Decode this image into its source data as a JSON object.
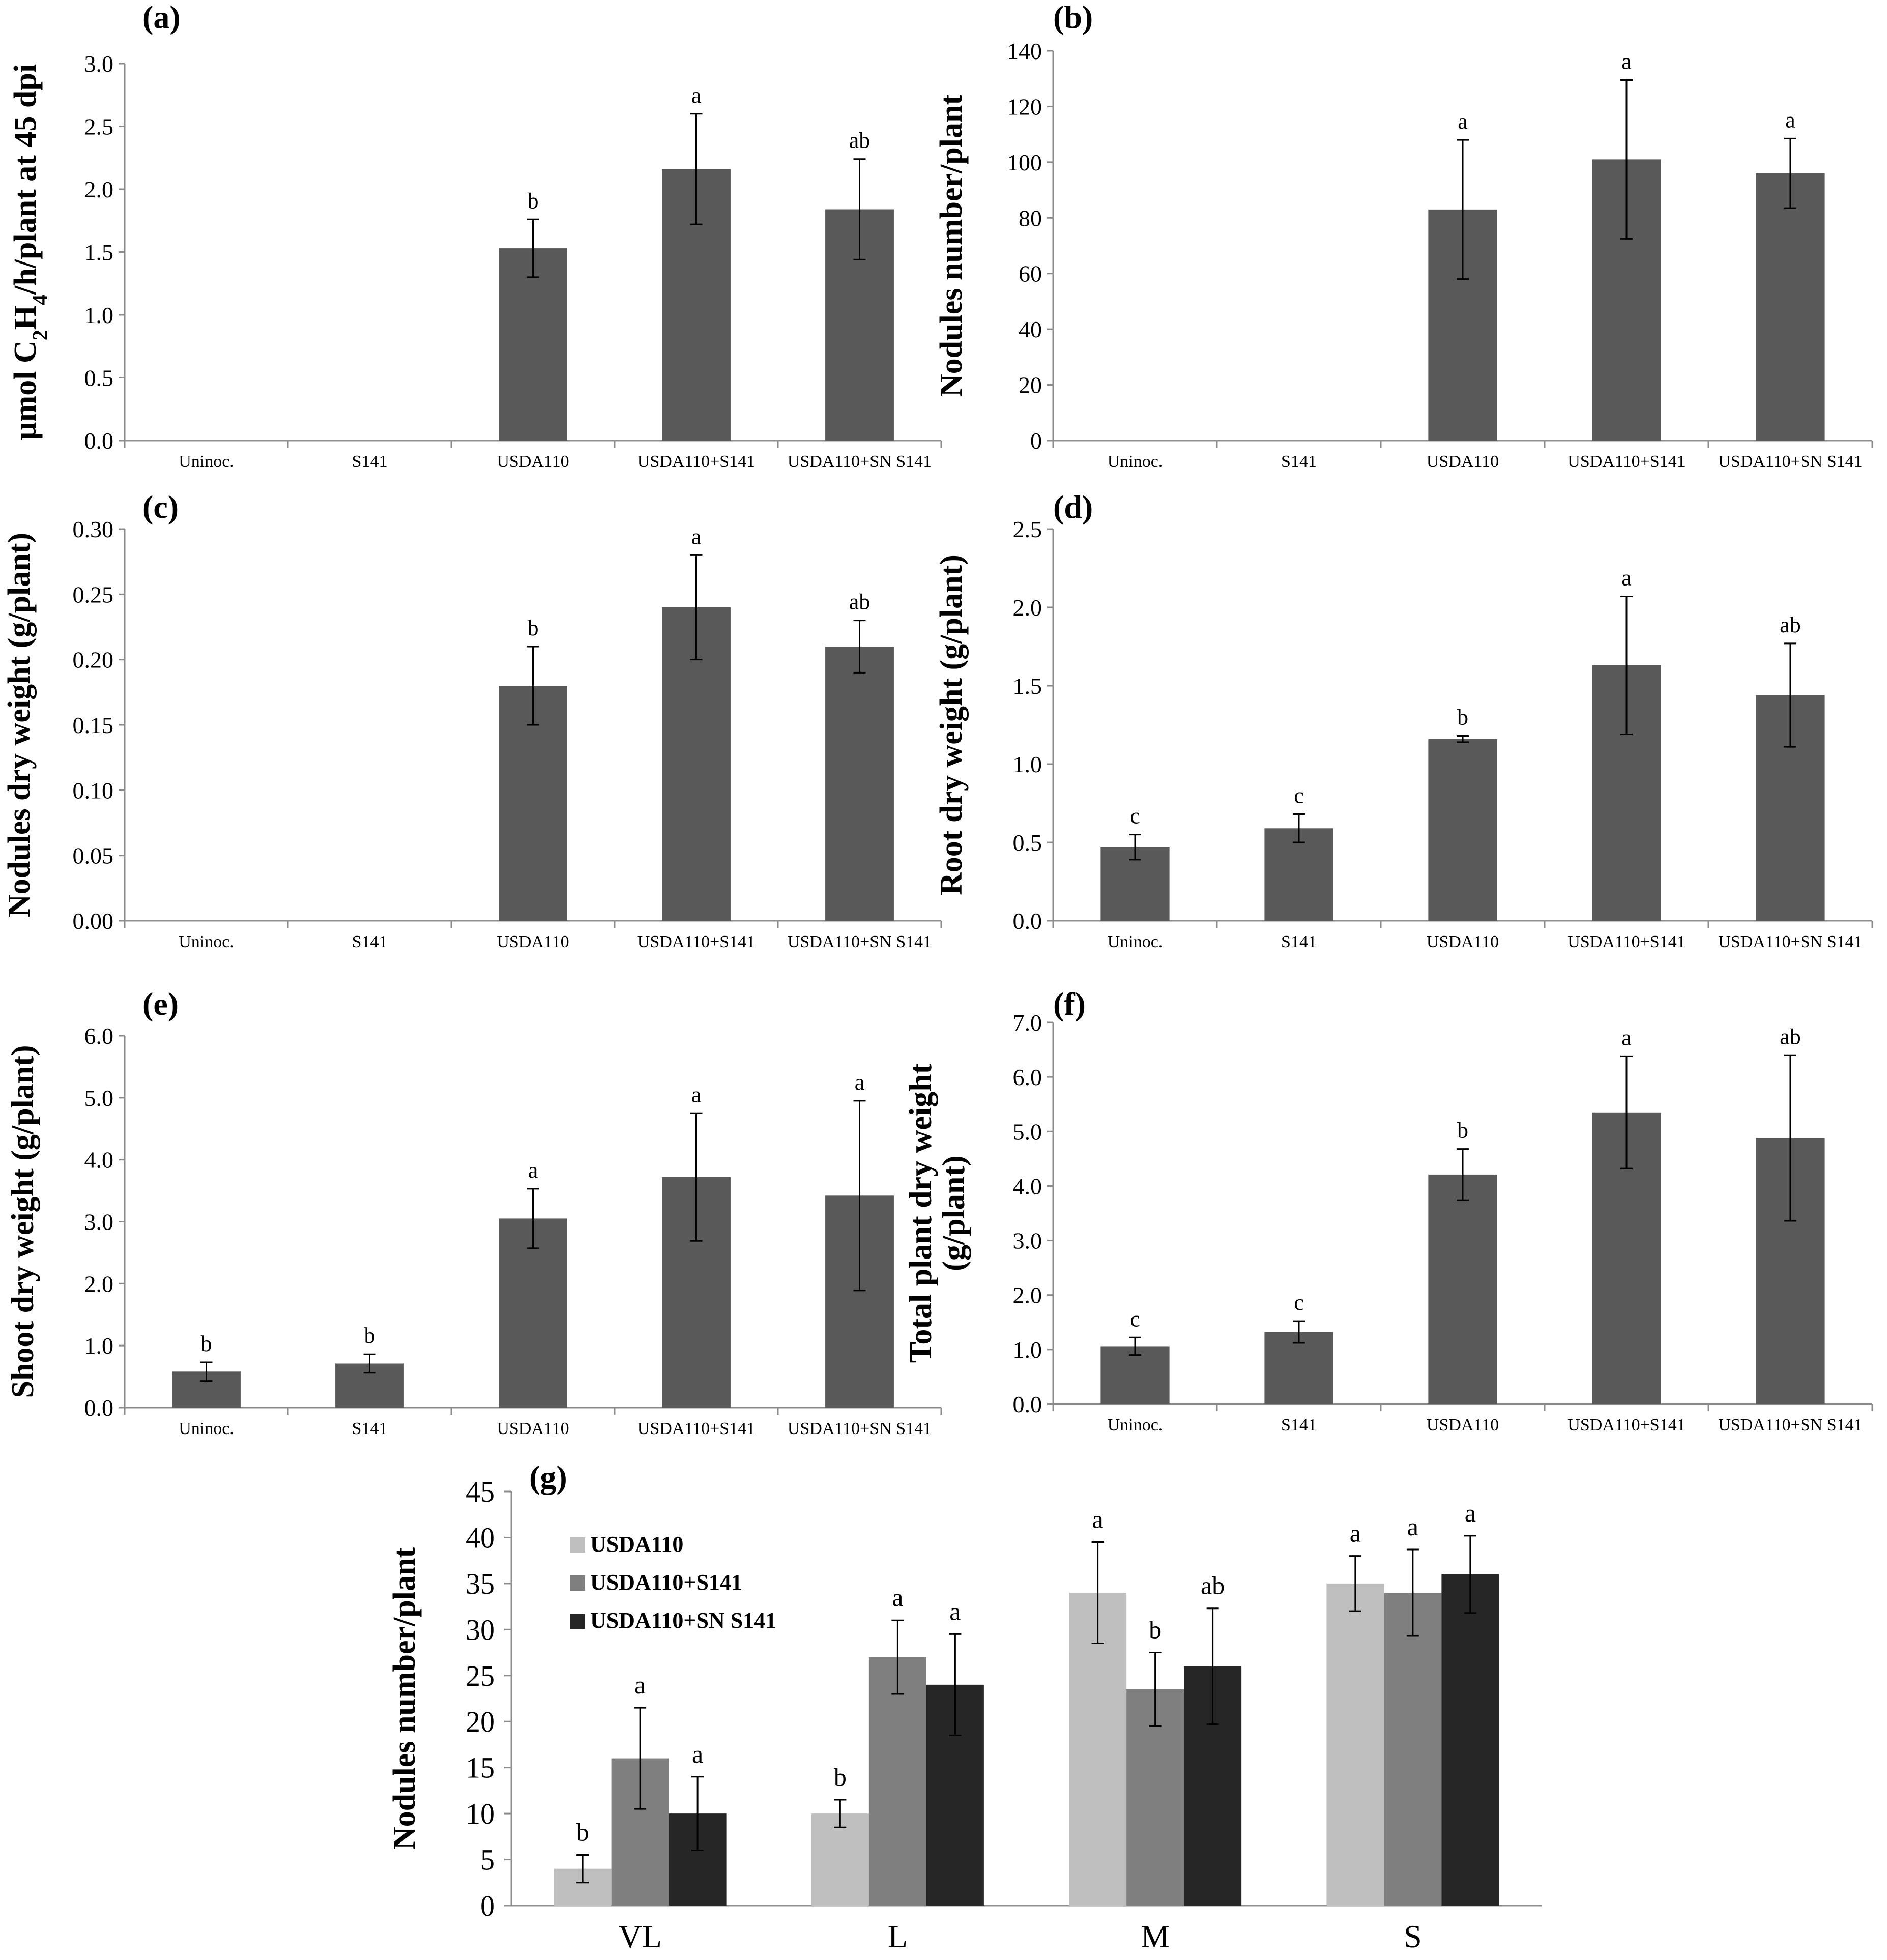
{
  "colors": {
    "bar": "#595959",
    "g_series": [
      "#bfbfbf",
      "#7f7f7f",
      "#262626"
    ],
    "axis": "#8c8c8c"
  },
  "chart_data": [
    {
      "type": "bar",
      "panel": "(a)",
      "ylabel_lines": [
        [
          {
            "t": "µmol C"
          },
          {
            "t": "2",
            "sub": true
          },
          {
            "t": "H"
          },
          {
            "t": "4",
            "sub": true
          },
          {
            "t": "/h/plant at 45 dpi"
          }
        ]
      ],
      "categories": [
        "Uninoc.",
        "S141",
        "USDA110",
        "USDA110+S141",
        "USDA110+SN S141"
      ],
      "values": [
        null,
        null,
        1.53,
        2.16,
        1.84
      ],
      "errors": [
        null,
        null,
        0.23,
        0.44,
        0.4
      ],
      "letters": [
        "",
        "",
        "b",
        "a",
        "ab"
      ],
      "ylim": [
        0,
        3.0
      ],
      "yticks": [
        "0.0",
        "0.5",
        "1.0",
        "1.5",
        "2.0",
        "2.5",
        "3.0"
      ]
    },
    {
      "type": "bar",
      "panel": "(b)",
      "ylabel_lines": [
        [
          {
            "t": "Nodules number/plant"
          }
        ]
      ],
      "categories": [
        "Uninoc.",
        "S141",
        "USDA110",
        "USDA110+S141",
        "USDA110+SN S141"
      ],
      "values": [
        null,
        null,
        83,
        101,
        96
      ],
      "errors": [
        null,
        null,
        25,
        28.5,
        12.5
      ],
      "letters": [
        "",
        "",
        "a",
        "a",
        "a"
      ],
      "ylim": [
        0,
        140
      ],
      "yticks": [
        "0",
        "20",
        "40",
        "60",
        "80",
        "100",
        "120",
        "140"
      ]
    },
    {
      "type": "bar",
      "panel": "(c)",
      "ylabel_lines": [
        [
          {
            "t": "Nodules dry weight (g/plant)"
          }
        ]
      ],
      "categories": [
        "Uninoc.",
        "S141",
        "USDA110",
        "USDA110+S141",
        "USDA110+SN S141"
      ],
      "values": [
        null,
        null,
        0.18,
        0.24,
        0.21
      ],
      "errors": [
        null,
        null,
        0.03,
        0.04,
        0.02
      ],
      "letters": [
        "",
        "",
        "b",
        "a",
        "ab"
      ],
      "ylim": [
        0,
        0.3
      ],
      "yticks": [
        "0.00",
        "0.05",
        "0.10",
        "0.15",
        "0.20",
        "0.25",
        "0.30"
      ]
    },
    {
      "type": "bar",
      "panel": "(d)",
      "ylabel_lines": [
        [
          {
            "t": "Root dry weight (g/plant)"
          }
        ]
      ],
      "categories": [
        "Uninoc.",
        "S141",
        "USDA110",
        "USDA110+S141",
        "USDA110+SN S141"
      ],
      "values": [
        0.47,
        0.59,
        1.16,
        1.63,
        1.44
      ],
      "errors": [
        0.08,
        0.09,
        0.02,
        0.44,
        0.33
      ],
      "letters": [
        "c",
        "c",
        "b",
        "a",
        "ab"
      ],
      "ylim": [
        0,
        2.5
      ],
      "yticks": [
        "0.0",
        "0.5",
        "1.0",
        "1.5",
        "2.0",
        "2.5"
      ]
    },
    {
      "type": "bar",
      "panel": "(e)",
      "ylabel_lines": [
        [
          {
            "t": "Shoot dry weight (g/plant)"
          }
        ]
      ],
      "categories": [
        "Uninoc.",
        "S141",
        "USDA110",
        "USDA110+S141",
        "USDA110+SN S141"
      ],
      "values": [
        0.58,
        0.71,
        3.05,
        3.72,
        3.42
      ],
      "errors": [
        0.15,
        0.15,
        0.48,
        1.03,
        1.53
      ],
      "letters": [
        "b",
        "b",
        "a",
        "a",
        "a"
      ],
      "ylim": [
        0,
        6.0
      ],
      "yticks": [
        "0.0",
        "1.0",
        "2.0",
        "3.0",
        "4.0",
        "5.0",
        "6.0"
      ]
    },
    {
      "type": "bar",
      "panel": "(f)",
      "ylabel_lines": [
        [
          {
            "t": "Total plant dry weight"
          }
        ],
        [
          {
            "t": "(g/plant)"
          }
        ]
      ],
      "categories": [
        "Uninoc.",
        "S141",
        "USDA110",
        "USDA110+S141",
        "USDA110+SN S141"
      ],
      "values": [
        1.06,
        1.32,
        4.21,
        5.35,
        4.88
      ],
      "errors": [
        0.16,
        0.2,
        0.47,
        1.03,
        1.52
      ],
      "letters": [
        "c",
        "c",
        "b",
        "a",
        "ab"
      ],
      "ylim": [
        0,
        7.0
      ],
      "yticks": [
        "0.0",
        "1.0",
        "2.0",
        "3.0",
        "4.0",
        "5.0",
        "6.0",
        "7.0"
      ]
    },
    {
      "type": "grouped-bar",
      "panel": "(g)",
      "ylabel_lines": [
        [
          {
            "t": "Nodules number/plant"
          }
        ]
      ],
      "categories": [
        "VL",
        "L",
        "M",
        "S"
      ],
      "series": [
        {
          "name": "USDA110",
          "values": [
            4,
            10,
            34,
            35
          ],
          "errors": [
            1.5,
            1.5,
            5.5,
            3
          ],
          "letters": [
            "b",
            "b",
            "a",
            "a"
          ]
        },
        {
          "name": "USDA110+S141",
          "values": [
            16,
            27,
            23.5,
            34
          ],
          "errors": [
            5.5,
            4,
            4,
            4.7
          ],
          "letters": [
            "a",
            "a",
            "b",
            "a"
          ]
        },
        {
          "name": "USDA110+SN S141",
          "values": [
            10,
            24,
            26,
            36
          ],
          "errors": [
            4,
            5.5,
            6.3,
            4.2
          ],
          "letters": [
            "a",
            "a",
            "ab",
            "a"
          ]
        }
      ],
      "ylim": [
        0,
        45
      ],
      "yticks": [
        "0",
        "5",
        "10",
        "15",
        "20",
        "25",
        "30",
        "35",
        "40",
        "45"
      ]
    }
  ]
}
